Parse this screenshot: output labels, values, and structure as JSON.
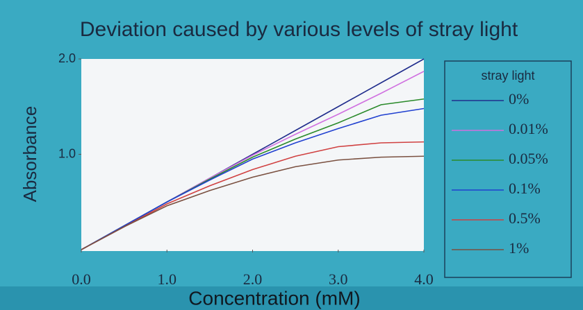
{
  "chart_data": {
    "type": "line",
    "title": "Deviation caused by various levels of stray light",
    "x_label": "Concentration (mM)",
    "y_label": "Absorbance",
    "legend_title": "stray light",
    "x": [
      0,
      0.5,
      1,
      1.5,
      2,
      2.5,
      3,
      3.5,
      4
    ],
    "xlim": [
      0,
      4
    ],
    "xticks": [
      {
        "value": 0,
        "label": "0.0"
      },
      {
        "value": 1,
        "label": "1.0"
      },
      {
        "value": 2,
        "label": "2.0"
      },
      {
        "value": 3,
        "label": "3.0"
      },
      {
        "value": 4,
        "label": "4.0"
      }
    ],
    "ylim": [
      0,
      2
    ],
    "yticks": [
      {
        "value": 1,
        "label": "1.0"
      },
      {
        "value": 2,
        "label": "2.0"
      }
    ],
    "series": [
      {
        "name": "0%",
        "color": "#1f2c8c",
        "values": [
          0,
          0.25,
          0.5,
          0.75,
          1,
          1.25,
          1.5,
          1.75,
          2
        ]
      },
      {
        "name": "0.01%",
        "color": "#d070e0",
        "values": [
          0,
          0.25,
          0.5,
          0.75,
          0.99,
          1.21,
          1.42,
          1.64,
          1.87
        ]
      },
      {
        "name": "0.05%",
        "color": "#2a8a2a",
        "values": [
          0,
          0.25,
          0.5,
          0.74,
          0.97,
          1.16,
          1.33,
          1.52,
          1.58
        ]
      },
      {
        "name": "0.1%",
        "color": "#2040d0",
        "values": [
          0,
          0.25,
          0.5,
          0.73,
          0.95,
          1.12,
          1.27,
          1.41,
          1.48
        ]
      },
      {
        "name": "0.5%",
        "color": "#d04040",
        "values": [
          0,
          0.24,
          0.48,
          0.67,
          0.84,
          0.98,
          1.08,
          1.12,
          1.13
        ]
      },
      {
        "name": "1%",
        "color": "#7a5040",
        "values": [
          0,
          0.24,
          0.46,
          0.62,
          0.76,
          0.87,
          0.94,
          0.97,
          0.98
        ]
      }
    ]
  }
}
